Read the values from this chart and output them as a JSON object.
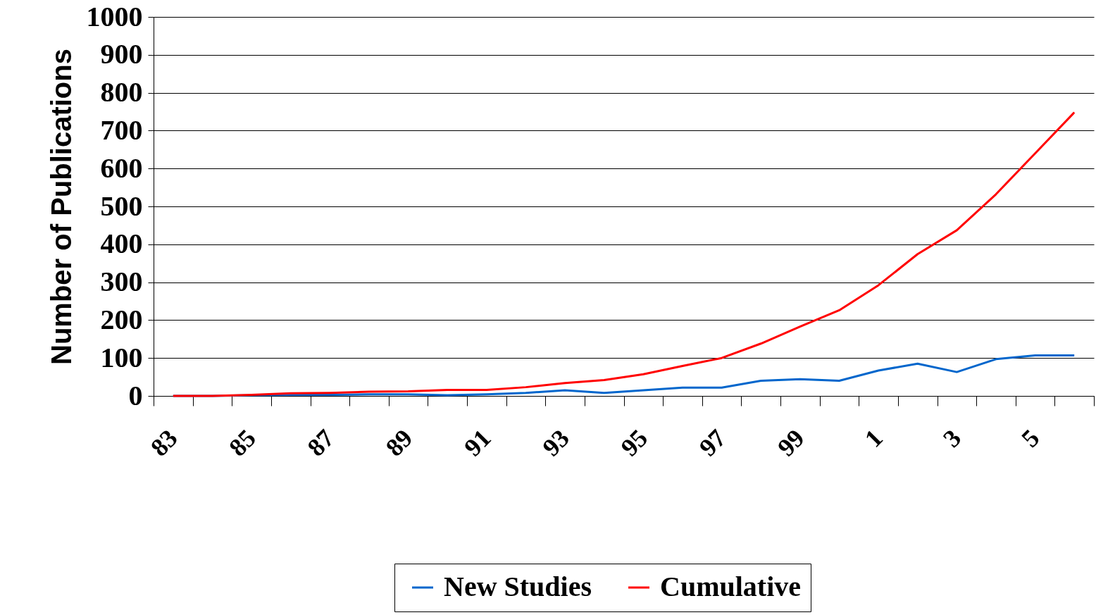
{
  "chart_data": {
    "type": "line",
    "ylabel": "Number of Publications",
    "categories": [
      "83",
      null,
      "85",
      null,
      "87",
      null,
      "89",
      null,
      "91",
      null,
      "93",
      null,
      "95",
      null,
      "97",
      null,
      "99",
      null,
      "1",
      null,
      "3",
      null,
      "5",
      null
    ],
    "series": [
      {
        "name": "New Studies",
        "color": "#0066cc",
        "values": [
          0,
          0,
          2,
          3,
          3,
          4,
          4,
          2,
          4,
          8,
          15,
          8,
          15,
          22,
          22,
          40,
          44,
          40,
          67,
          85,
          63,
          97,
          107,
          107
        ]
      },
      {
        "name": "Cumulative",
        "color": "#ff0000",
        "values": [
          0,
          0,
          3,
          7,
          8,
          11,
          12,
          16,
          16,
          23,
          34,
          42,
          57,
          79,
          100,
          138,
          183,
          226,
          292,
          374,
          437,
          532,
          640,
          748
        ]
      }
    ],
    "ylim": [
      0,
      1000
    ],
    "yticks": [
      0,
      100,
      200,
      300,
      400,
      500,
      600,
      700,
      800,
      900,
      1000
    ],
    "grid": "y",
    "legend": "bottom",
    "marker": "none",
    "line_style": "solid"
  }
}
